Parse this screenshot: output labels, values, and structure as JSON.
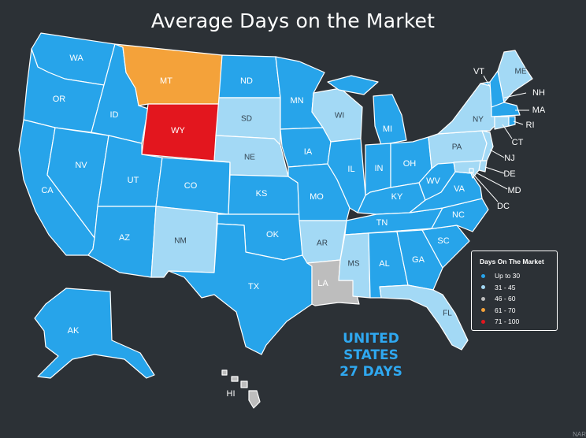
{
  "title": "Average Days on the Market",
  "colors": {
    "up_to_30": "#27a4ea",
    "31_45": "#a3d9f5",
    "46_60": "#bdbdbd",
    "61_70": "#f4a23a",
    "71_100": "#e3161e",
    "background": "#2c3136"
  },
  "states": {
    "WA": {
      "label": "WA",
      "cat": "up_to_30"
    },
    "OR": {
      "label": "OR",
      "cat": "up_to_30"
    },
    "CA": {
      "label": "CA",
      "cat": "up_to_30"
    },
    "NV": {
      "label": "NV",
      "cat": "up_to_30"
    },
    "ID": {
      "label": "ID",
      "cat": "up_to_30"
    },
    "MT": {
      "label": "MT",
      "cat": "61_70"
    },
    "WY": {
      "label": "WY",
      "cat": "71_100"
    },
    "UT": {
      "label": "UT",
      "cat": "up_to_30"
    },
    "CO": {
      "label": "CO",
      "cat": "up_to_30"
    },
    "AZ": {
      "label": "AZ",
      "cat": "up_to_30"
    },
    "NM": {
      "label": "NM",
      "cat": "31_45"
    },
    "ND": {
      "label": "ND",
      "cat": "up_to_30"
    },
    "SD": {
      "label": "SD",
      "cat": "31_45"
    },
    "NE": {
      "label": "NE",
      "cat": "31_45"
    },
    "KS": {
      "label": "KS",
      "cat": "up_to_30"
    },
    "OK": {
      "label": "OK",
      "cat": "up_to_30"
    },
    "TX": {
      "label": "TX",
      "cat": "up_to_30"
    },
    "MN": {
      "label": "MN",
      "cat": "up_to_30"
    },
    "IA": {
      "label": "IA",
      "cat": "up_to_30"
    },
    "MO": {
      "label": "MO",
      "cat": "up_to_30"
    },
    "AR": {
      "label": "AR",
      "cat": "31_45"
    },
    "LA": {
      "label": "LA",
      "cat": "46_60"
    },
    "WI": {
      "label": "WI",
      "cat": "31_45"
    },
    "IL": {
      "label": "IL",
      "cat": "up_to_30"
    },
    "MI": {
      "label": "MI",
      "cat": "up_to_30"
    },
    "IN": {
      "label": "IN",
      "cat": "up_to_30"
    },
    "OH": {
      "label": "OH",
      "cat": "up_to_30"
    },
    "KY": {
      "label": "KY",
      "cat": "up_to_30"
    },
    "TN": {
      "label": "TN",
      "cat": "up_to_30"
    },
    "MS": {
      "label": "MS",
      "cat": "31_45"
    },
    "AL": {
      "label": "AL",
      "cat": "up_to_30"
    },
    "GA": {
      "label": "GA",
      "cat": "up_to_30"
    },
    "FL": {
      "label": "FL",
      "cat": "31_45"
    },
    "SC": {
      "label": "SC",
      "cat": "up_to_30"
    },
    "NC": {
      "label": "NC",
      "cat": "up_to_30"
    },
    "VA": {
      "label": "VA",
      "cat": "up_to_30"
    },
    "WV": {
      "label": "WV",
      "cat": "up_to_30"
    },
    "PA": {
      "label": "PA",
      "cat": "31_45"
    },
    "NY": {
      "label": "NY",
      "cat": "31_45"
    },
    "VT": {
      "label": "VT",
      "cat": "up_to_30"
    },
    "NH": {
      "label": "NH",
      "cat": "up_to_30"
    },
    "ME": {
      "label": "ME",
      "cat": "31_45"
    },
    "MA": {
      "label": "MA",
      "cat": "up_to_30"
    },
    "RI": {
      "label": "RI",
      "cat": "up_to_30"
    },
    "CT": {
      "label": "CT",
      "cat": "31_45"
    },
    "NJ": {
      "label": "NJ",
      "cat": "31_45"
    },
    "DE": {
      "label": "DE",
      "cat": "31_45"
    },
    "MD": {
      "label": "MD",
      "cat": "31_45"
    },
    "DC": {
      "label": "DC",
      "cat": "31_45"
    },
    "AK": {
      "label": "AK",
      "cat": "up_to_30"
    },
    "HI": {
      "label": "HI",
      "cat": "46_60"
    }
  },
  "legend": {
    "title": "Days On The Market",
    "items": [
      {
        "label": "Up to 30",
        "cat": "up_to_30"
      },
      {
        "label": "31 - 45",
        "cat": "31_45"
      },
      {
        "label": "46 - 60",
        "cat": "46_60"
      },
      {
        "label": "61 - 70",
        "cat": "61_70"
      },
      {
        "label": "71 - 100",
        "cat": "71_100"
      }
    ]
  },
  "national": {
    "line1": "UNITED STATES",
    "line2": "27 DAYS"
  },
  "source": "NAR"
}
